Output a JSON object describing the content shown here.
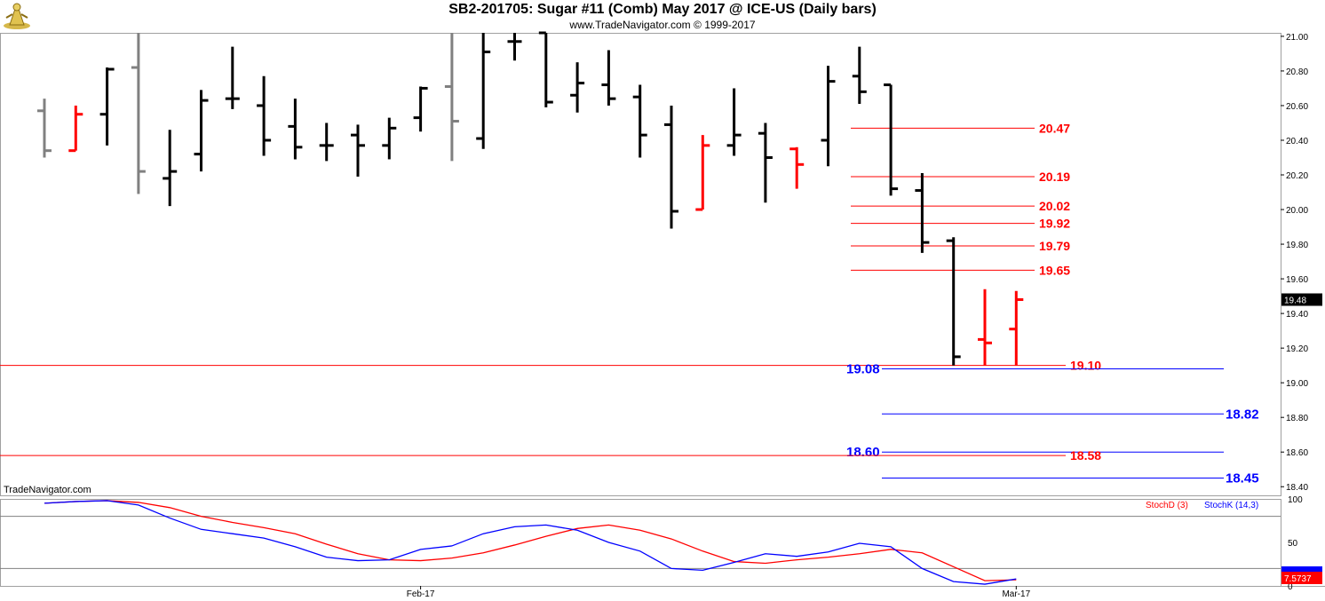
{
  "header": {
    "title": "SB2-201705:  Sugar #11 (Comb) May 2017 @ ICE-US  (Daily bars)",
    "subtitle": "www.TradeNavigator.com © 1999-2017",
    "watermark": "TradeNavigator.com"
  },
  "colors": {
    "up_bar": "#000000",
    "gray_bar": "#808080",
    "red_bar": "#ff0000",
    "level_red": "#ff0000",
    "level_blue": "#0000ff",
    "stoch_d": "#ff0000",
    "stoch_k": "#0000ff"
  },
  "chart_data": [
    {
      "type": "ohlc",
      "ylim": [
        18.35,
        21.02
      ],
      "y_ticks": [
        "21.00",
        "20.80",
        "20.60",
        "20.40",
        "20.20",
        "20.00",
        "19.80",
        "19.60",
        "19.40",
        "19.20",
        "19.00",
        "18.80",
        "18.60",
        "18.40"
      ],
      "x_labels": [
        {
          "label": "Feb-17",
          "bar": 12
        },
        {
          "label": "Mar-17",
          "bar": 31
        }
      ],
      "last_price": "19.48",
      "bars": [
        {
          "o": 20.57,
          "h": 20.64,
          "l": 20.3,
          "c": 20.34,
          "color": "gray"
        },
        {
          "o": 20.34,
          "h": 20.6,
          "l": 20.34,
          "c": 20.55,
          "color": "red"
        },
        {
          "o": 20.55,
          "h": 20.82,
          "l": 20.37,
          "c": 20.81,
          "color": "black"
        },
        {
          "o": 20.82,
          "h": 21.02,
          "l": 20.09,
          "c": 20.22,
          "color": "gray"
        },
        {
          "o": 20.18,
          "h": 20.46,
          "l": 20.02,
          "c": 20.22,
          "color": "black"
        },
        {
          "o": 20.32,
          "h": 20.69,
          "l": 20.22,
          "c": 20.63,
          "color": "black"
        },
        {
          "o": 20.64,
          "h": 20.94,
          "l": 20.58,
          "c": 20.64,
          "color": "black"
        },
        {
          "o": 20.6,
          "h": 20.77,
          "l": 20.31,
          "c": 20.4,
          "color": "black"
        },
        {
          "o": 20.48,
          "h": 20.64,
          "l": 20.29,
          "c": 20.36,
          "color": "black"
        },
        {
          "o": 20.37,
          "h": 20.5,
          "l": 20.28,
          "c": 20.37,
          "color": "black"
        },
        {
          "o": 20.43,
          "h": 20.49,
          "l": 20.19,
          "c": 20.37,
          "color": "black"
        },
        {
          "o": 20.37,
          "h": 20.53,
          "l": 20.29,
          "c": 20.47,
          "color": "black"
        },
        {
          "o": 20.53,
          "h": 20.71,
          "l": 20.45,
          "c": 20.7,
          "color": "black"
        },
        {
          "o": 20.71,
          "h": 21.02,
          "l": 20.28,
          "c": 20.51,
          "color": "gray"
        },
        {
          "o": 20.41,
          "h": 21.02,
          "l": 20.35,
          "c": 20.91,
          "color": "black"
        },
        {
          "o": 20.97,
          "h": 21.02,
          "l": 20.86,
          "c": 20.97,
          "color": "black"
        },
        {
          "o": 21.02,
          "h": 21.02,
          "l": 20.59,
          "c": 20.62,
          "color": "black"
        },
        {
          "o": 20.66,
          "h": 20.85,
          "l": 20.56,
          "c": 20.73,
          "color": "black"
        },
        {
          "o": 20.72,
          "h": 20.92,
          "l": 20.6,
          "c": 20.64,
          "color": "black"
        },
        {
          "o": 20.65,
          "h": 20.72,
          "l": 20.3,
          "c": 20.43,
          "color": "black"
        },
        {
          "o": 20.49,
          "h": 20.6,
          "l": 19.89,
          "c": 19.99,
          "color": "black"
        },
        {
          "o": 20.0,
          "h": 20.43,
          "l": 20.0,
          "c": 20.37,
          "color": "red"
        },
        {
          "o": 20.37,
          "h": 20.7,
          "l": 20.31,
          "c": 20.43,
          "color": "black"
        },
        {
          "o": 20.44,
          "h": 20.5,
          "l": 20.04,
          "c": 20.3,
          "color": "black"
        },
        {
          "o": 20.35,
          "h": 20.36,
          "l": 20.12,
          "c": 20.26,
          "color": "red"
        },
        {
          "o": 20.4,
          "h": 20.83,
          "l": 20.25,
          "c": 20.74,
          "color": "black"
        },
        {
          "o": 20.77,
          "h": 20.94,
          "l": 20.61,
          "c": 20.68,
          "color": "black"
        },
        {
          "o": 20.72,
          "h": 20.72,
          "l": 20.08,
          "c": 20.12,
          "color": "black"
        },
        {
          "o": 20.11,
          "h": 20.21,
          "l": 19.75,
          "c": 19.81,
          "color": "black"
        },
        {
          "o": 19.82,
          "h": 19.84,
          "l": 19.1,
          "c": 19.15,
          "color": "black"
        },
        {
          "o": 19.25,
          "h": 19.54,
          "l": 19.1,
          "c": 19.23,
          "color": "red"
        },
        {
          "o": 19.31,
          "h": 19.53,
          "l": 19.1,
          "c": 19.48,
          "color": "red"
        }
      ],
      "levels": [
        {
          "value": 20.47,
          "label": "20.47",
          "color": "red",
          "span": "right"
        },
        {
          "value": 20.19,
          "label": "20.19",
          "color": "red",
          "span": "right"
        },
        {
          "value": 20.02,
          "label": "20.02",
          "color": "red",
          "span": "right"
        },
        {
          "value": 19.92,
          "label": "19.92",
          "color": "red",
          "span": "right"
        },
        {
          "value": 19.79,
          "label": "19.79",
          "color": "red",
          "span": "right"
        },
        {
          "value": 19.65,
          "label": "19.65",
          "color": "red",
          "span": "right"
        },
        {
          "value": 19.1,
          "label": "19.10",
          "color": "red",
          "span": "full"
        },
        {
          "value": 19.08,
          "label": "19.08",
          "color": "blue",
          "span": "right_left_label"
        },
        {
          "value": 18.82,
          "label": "18.82",
          "color": "blue",
          "span": "right"
        },
        {
          "value": 18.6,
          "label": "18.60",
          "color": "blue",
          "span": "right_left_label"
        },
        {
          "value": 18.58,
          "label": "18.58",
          "color": "red",
          "span": "full"
        },
        {
          "value": 18.45,
          "label": "18.45",
          "color": "blue",
          "span": "right"
        }
      ]
    },
    {
      "type": "line",
      "ylim": [
        0,
        100
      ],
      "y_ticks": [
        "100",
        "50",
        "0"
      ],
      "reference_lines": [
        80,
        20
      ],
      "last_value": "7.5737",
      "legend": [
        {
          "name": "StochD (3)",
          "color": "red"
        },
        {
          "name": "StochK (14,3)",
          "color": "blue"
        }
      ],
      "series": [
        {
          "name": "StochD (3)",
          "values": [
            95,
            97,
            98,
            96,
            90,
            80,
            73,
            67,
            60,
            48,
            37,
            30,
            29,
            32,
            38,
            47,
            57,
            66,
            70,
            64,
            54,
            40,
            28,
            26,
            30,
            33,
            37,
            42,
            38,
            22,
            6,
            7
          ]
        },
        {
          "name": "StochK (14,3)",
          "values": [
            95,
            97,
            98,
            93,
            78,
            65,
            60,
            55,
            45,
            33,
            29,
            30,
            42,
            46,
            60,
            68,
            70,
            64,
            50,
            40,
            20,
            18,
            27,
            37,
            34,
            39,
            49,
            45,
            20,
            5,
            2,
            8
          ]
        }
      ]
    }
  ]
}
